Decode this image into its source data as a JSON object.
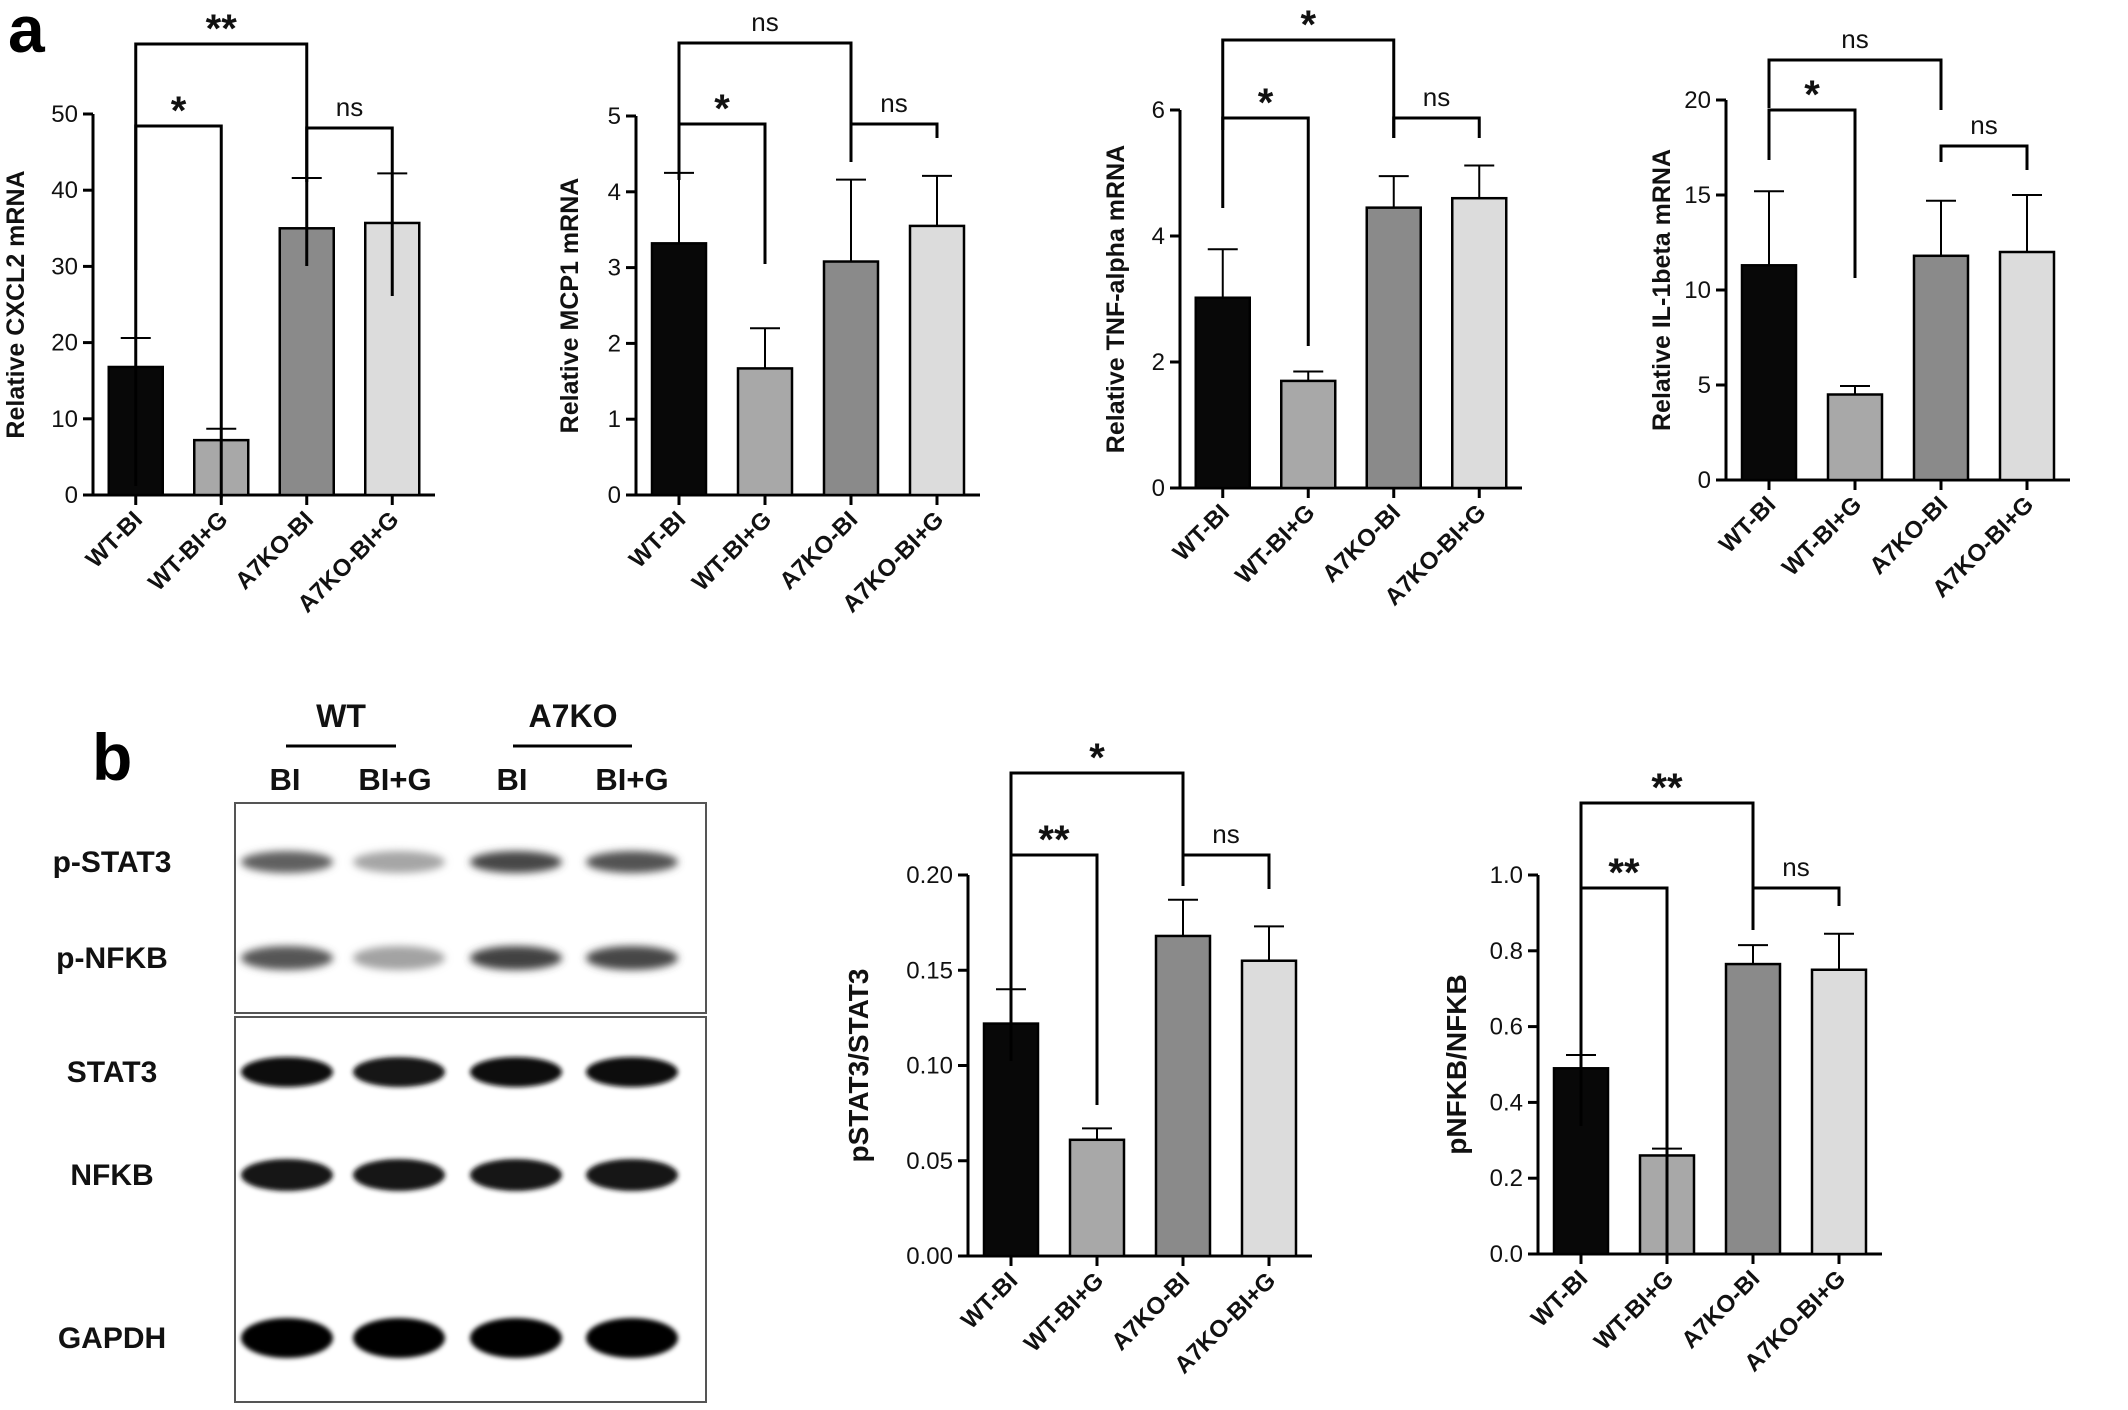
{
  "panel_labels": {
    "a": "a",
    "b": "b"
  },
  "colors": {
    "bar": [
      "#080808",
      "#a8a8a8",
      "#8a8a8a",
      "#dcdcdc"
    ],
    "axis": "#000000"
  },
  "chart_data": [
    {
      "type": "bar",
      "panel": "a",
      "ylabel": "Relative CXCL2 mRNA",
      "ylim": [
        0,
        50
      ],
      "ticks": [
        "0",
        "10",
        "20",
        "30",
        "40",
        "50"
      ],
      "categories": [
        "WT-BI",
        "WT-BI+G",
        "A7KO-BI",
        "A7KO-BI+G"
      ],
      "values": [
        16.8,
        7.2,
        35.0,
        35.7
      ],
      "errors": [
        3.8,
        1.5,
        6.6,
        6.5
      ],
      "significance": [
        {
          "from": 0,
          "to": 1,
          "label": "*"
        },
        {
          "from": 0,
          "to": 2,
          "label": "**"
        },
        {
          "from": 2,
          "to": 3,
          "label": "ns"
        }
      ]
    },
    {
      "type": "bar",
      "panel": "a",
      "ylabel": "Relative MCP1 mRNA",
      "ylim": [
        0,
        5
      ],
      "ticks": [
        "0",
        "1",
        "2",
        "3",
        "4",
        "5"
      ],
      "categories": [
        "WT-BI",
        "WT-BI+G",
        "A7KO-BI",
        "A7KO-BI+G"
      ],
      "values": [
        3.32,
        1.67,
        3.08,
        3.55
      ],
      "errors": [
        0.93,
        0.53,
        1.08,
        0.66
      ],
      "significance": [
        {
          "from": 0,
          "to": 1,
          "label": "*"
        },
        {
          "from": 0,
          "to": 2,
          "label": "ns"
        },
        {
          "from": 2,
          "to": 3,
          "label": "ns"
        }
      ]
    },
    {
      "type": "bar",
      "panel": "a",
      "ylabel": "Relative TNF-alpha mRNA",
      "ylim": [
        0,
        6
      ],
      "ticks": [
        "0",
        "2",
        "4",
        "6"
      ],
      "categories": [
        "WT-BI",
        "WT-BI+G",
        "A7KO-BI",
        "A7KO-BI+G"
      ],
      "values": [
        3.02,
        1.7,
        4.45,
        4.6
      ],
      "errors": [
        0.77,
        0.15,
        0.5,
        0.52
      ],
      "significance": [
        {
          "from": 0,
          "to": 1,
          "label": "*"
        },
        {
          "from": 0,
          "to": 2,
          "label": "*"
        },
        {
          "from": 2,
          "to": 3,
          "label": "ns"
        }
      ]
    },
    {
      "type": "bar",
      "panel": "a",
      "ylabel": "Relative IL-1beta mRNA",
      "ylim": [
        0,
        20
      ],
      "ticks": [
        "0",
        "5",
        "10",
        "15",
        "20"
      ],
      "categories": [
        "WT-BI",
        "WT-BI+G",
        "A7KO-BI",
        "A7KO-BI+G"
      ],
      "values": [
        11.3,
        4.5,
        11.8,
        12.0
      ],
      "errors": [
        3.9,
        0.45,
        2.9,
        3.0
      ],
      "significance": [
        {
          "from": 0,
          "to": 1,
          "label": "*"
        },
        {
          "from": 0,
          "to": 2,
          "label": "ns"
        },
        {
          "from": 2,
          "to": 3,
          "label": "ns"
        }
      ]
    },
    {
      "type": "bar",
      "panel": "b",
      "ylabel": "pSTAT3/STAT3",
      "ylim": [
        0,
        0.2
      ],
      "ticks": [
        "0.00",
        "0.05",
        "0.10",
        "0.15",
        "0.20"
      ],
      "categories": [
        "WT-BI",
        "WT-BI+G",
        "A7KO-BI",
        "A7KO-BI+G"
      ],
      "values": [
        0.122,
        0.061,
        0.168,
        0.155
      ],
      "errors": [
        0.018,
        0.006,
        0.019,
        0.018
      ],
      "significance": [
        {
          "from": 0,
          "to": 1,
          "label": "**"
        },
        {
          "from": 0,
          "to": 2,
          "label": "*"
        },
        {
          "from": 2,
          "to": 3,
          "label": "ns"
        }
      ]
    },
    {
      "type": "bar",
      "panel": "b",
      "ylabel": "pNFKB/NFKB",
      "ylim": [
        0,
        1.0
      ],
      "ticks": [
        "0.0",
        "0.2",
        "0.4",
        "0.6",
        "0.8",
        "1.0"
      ],
      "categories": [
        "WT-BI",
        "WT-BI+G",
        "A7KO-BI",
        "A7KO-BI+G"
      ],
      "values": [
        0.49,
        0.26,
        0.765,
        0.75
      ],
      "errors": [
        0.035,
        0.018,
        0.05,
        0.095
      ],
      "significance": [
        {
          "from": 0,
          "to": 1,
          "label": "**"
        },
        {
          "from": 0,
          "to": 2,
          "label": "**"
        },
        {
          "from": 2,
          "to": 3,
          "label": "ns"
        }
      ]
    }
  ],
  "blot": {
    "group_labels": [
      "WT",
      "A7KO"
    ],
    "lane_labels": [
      "BI",
      "BI+G",
      "BI",
      "BI+G"
    ],
    "rows": [
      {
        "label": "p-STAT3",
        "intensity": [
          0.62,
          0.35,
          0.72,
          0.68
        ]
      },
      {
        "label": "p-NFKB",
        "intensity": [
          0.66,
          0.36,
          0.74,
          0.72
        ]
      },
      {
        "label": "STAT3",
        "intensity": [
          0.95,
          0.92,
          0.95,
          0.95
        ]
      },
      {
        "label": "NFKB",
        "intensity": [
          0.93,
          0.9,
          0.93,
          0.92
        ]
      },
      {
        "label": "GAPDH",
        "intensity": [
          0.98,
          0.98,
          0.98,
          0.98
        ]
      }
    ]
  }
}
